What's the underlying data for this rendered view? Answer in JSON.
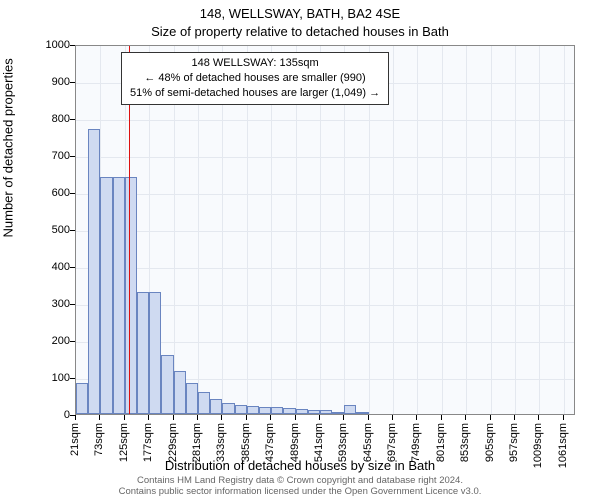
{
  "title_line1": "148, WELLSWAY, BATH, BA2 4SE",
  "title_line2": "Size of property relative to detached houses in Bath",
  "y_axis_title": "Number of detached properties",
  "x_axis_title": "Distribution of detached houses by size in Bath",
  "footer_line1": "Contains HM Land Registry data © Crown copyright and database right 2024.",
  "footer_line2": "Contains public sector information licensed under the Open Government Licence v3.0.",
  "annotation": {
    "line1": "148 WELLSWAY: 135sqm",
    "line2": "← 48% of detached houses are smaller (990)",
    "line3": "51% of semi-detached houses are larger (1,049) →"
  },
  "chart": {
    "type": "histogram",
    "background_color": "#f8fafd",
    "bar_fill": "#cfdaf1",
    "bar_border": "#6a85c0",
    "grid_color": "#e4e8ef",
    "axis_color": "#888888",
    "marker_color": "#dd1111",
    "marker_value_sqm": 135,
    "ylim": [
      0,
      1000
    ],
    "ytick_step": 100,
    "x_min_sqm": 21,
    "x_max_sqm": 1087,
    "x_tick_start": 21,
    "x_tick_step": 52,
    "x_tick_unit_suffix": "sqm",
    "bars": [
      {
        "x_sqm": 34,
        "count": 85
      },
      {
        "x_sqm": 60,
        "count": 770
      },
      {
        "x_sqm": 86,
        "count": 640
      },
      {
        "x_sqm": 112,
        "count": 640
      },
      {
        "x_sqm": 138,
        "count": 640
      },
      {
        "x_sqm": 164,
        "count": 330
      },
      {
        "x_sqm": 190,
        "count": 330
      },
      {
        "x_sqm": 216,
        "count": 160
      },
      {
        "x_sqm": 242,
        "count": 115
      },
      {
        "x_sqm": 268,
        "count": 85
      },
      {
        "x_sqm": 294,
        "count": 60
      },
      {
        "x_sqm": 320,
        "count": 40
      },
      {
        "x_sqm": 346,
        "count": 30
      },
      {
        "x_sqm": 372,
        "count": 25
      },
      {
        "x_sqm": 398,
        "count": 22
      },
      {
        "x_sqm": 424,
        "count": 20
      },
      {
        "x_sqm": 450,
        "count": 18
      },
      {
        "x_sqm": 476,
        "count": 15
      },
      {
        "x_sqm": 502,
        "count": 14
      },
      {
        "x_sqm": 528,
        "count": 12
      },
      {
        "x_sqm": 554,
        "count": 10
      },
      {
        "x_sqm": 580,
        "count": 5
      },
      {
        "x_sqm": 606,
        "count": 25
      },
      {
        "x_sqm": 632,
        "count": 3
      }
    ],
    "title_fontsize": 13,
    "axis_title_fontsize": 13,
    "tick_fontsize": 11,
    "annotation_fontsize": 11
  }
}
